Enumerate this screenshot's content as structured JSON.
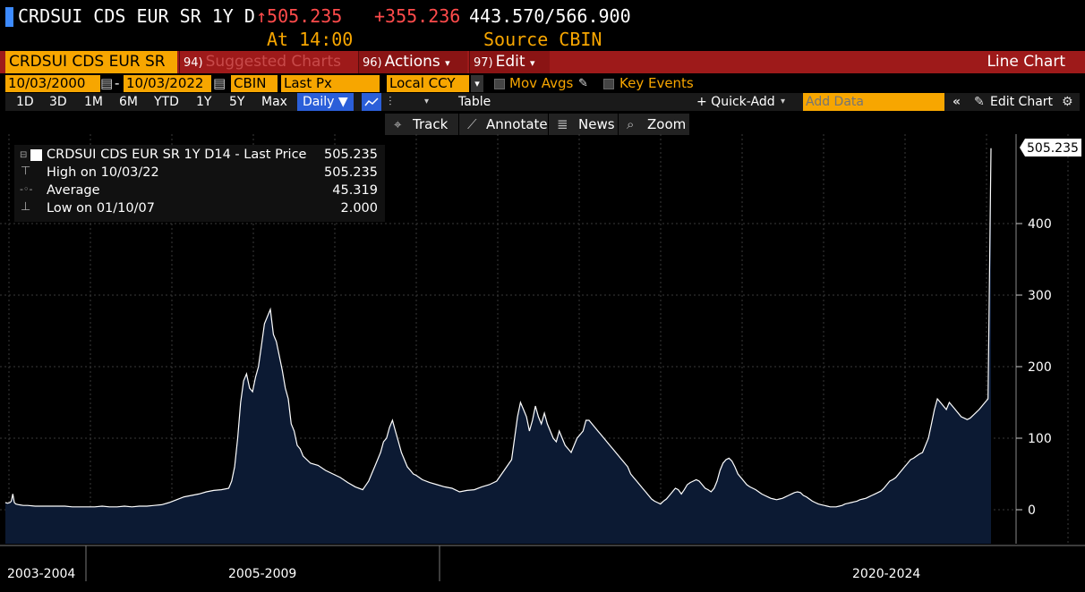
{
  "header": {
    "title": "CRDSUI CDS EUR SR 1Y D",
    "price": "↑505.235",
    "change": "+355.236",
    "range": "443.570/566.900",
    "time": "At 14:00",
    "source": "Source CBIN"
  },
  "toolbar": {
    "ticker": "CRDSUI CDS EUR SR",
    "suggested_num": "94)",
    "suggested": "Suggested Charts",
    "actions_num": "96)",
    "actions": "Actions",
    "edit_num": "97)",
    "edit": "Edit",
    "chart_kind": "Line Chart",
    "date_from": "10/03/2000",
    "date_to": "10/03/2022",
    "source_field": "CBIN",
    "field": "Last Px",
    "ccy": "Local CCY",
    "mov_avgs": "Mov Avgs",
    "key_events": "Key Events",
    "ranges": [
      "1D",
      "3D",
      "1M",
      "6M",
      "YTD",
      "1Y",
      "5Y",
      "Max"
    ],
    "daily": "Daily",
    "table": "Table",
    "quick_add": "+ Quick-Add",
    "add_data_placeholder": "Add Data",
    "edit_chart": "Edit Chart",
    "track": "Track",
    "annotate": "Annotate",
    "news": "News",
    "zoom": "Zoom"
  },
  "legend": {
    "name": "CRDSUI CDS EUR SR 1Y D14 - Last Price",
    "last": "505.235",
    "high_label": "High on 10/03/22",
    "high": "505.235",
    "avg_label": "Average",
    "avg": "45.319",
    "low_label": "Low on 01/10/07",
    "low": "2.000"
  },
  "chart_data": {
    "type": "area",
    "series": [
      {
        "name": "CRDSUI CDS EUR SR 1Y D14 - Last Price",
        "points": [
          [
            0,
            10
          ],
          [
            1.5,
            9
          ],
          [
            3,
            10
          ],
          [
            4,
            12
          ],
          [
            5,
            22
          ],
          [
            6,
            10
          ],
          [
            7,
            8
          ],
          [
            9,
            7
          ],
          [
            12,
            6
          ],
          [
            15,
            6
          ],
          [
            20,
            5
          ],
          [
            25,
            5
          ],
          [
            30,
            5
          ],
          [
            35,
            5
          ],
          [
            40,
            5
          ],
          [
            45,
            4
          ],
          [
            50,
            4
          ],
          [
            55,
            4
          ],
          [
            60,
            4
          ],
          [
            65,
            5
          ],
          [
            70,
            4
          ],
          [
            75,
            4
          ],
          [
            80,
            5
          ],
          [
            85,
            4
          ],
          [
            90,
            5
          ],
          [
            95,
            5
          ],
          [
            100,
            6
          ],
          [
            105,
            7
          ],
          [
            110,
            10
          ],
          [
            115,
            14
          ],
          [
            120,
            18
          ],
          [
            125,
            20
          ],
          [
            130,
            22
          ],
          [
            135,
            25
          ],
          [
            140,
            27
          ],
          [
            145,
            28
          ],
          [
            150,
            30
          ],
          [
            152,
            40
          ],
          [
            154,
            60
          ],
          [
            156,
            100
          ],
          [
            158,
            150
          ],
          [
            160,
            180
          ],
          [
            162,
            190
          ],
          [
            164,
            170
          ],
          [
            166,
            165
          ],
          [
            168,
            185
          ],
          [
            170,
            200
          ],
          [
            172,
            230
          ],
          [
            174,
            260
          ],
          [
            176,
            270
          ],
          [
            178,
            280
          ],
          [
            180,
            245
          ],
          [
            182,
            235
          ],
          [
            184,
            215
          ],
          [
            186,
            195
          ],
          [
            188,
            170
          ],
          [
            190,
            155
          ],
          [
            192,
            120
          ],
          [
            194,
            110
          ],
          [
            196,
            90
          ],
          [
            198,
            85
          ],
          [
            200,
            75
          ],
          [
            205,
            65
          ],
          [
            210,
            62
          ],
          [
            215,
            55
          ],
          [
            220,
            50
          ],
          [
            225,
            45
          ],
          [
            230,
            38
          ],
          [
            235,
            32
          ],
          [
            240,
            28
          ],
          [
            242,
            34
          ],
          [
            244,
            40
          ],
          [
            246,
            50
          ],
          [
            248,
            60
          ],
          [
            250,
            70
          ],
          [
            252,
            80
          ],
          [
            254,
            95
          ],
          [
            256,
            100
          ],
          [
            258,
            115
          ],
          [
            260,
            125
          ],
          [
            262,
            110
          ],
          [
            264,
            95
          ],
          [
            266,
            80
          ],
          [
            268,
            70
          ],
          [
            270,
            60
          ],
          [
            272,
            55
          ],
          [
            274,
            50
          ],
          [
            276,
            48
          ],
          [
            278,
            45
          ],
          [
            280,
            42
          ],
          [
            285,
            38
          ],
          [
            290,
            35
          ],
          [
            295,
            32
          ],
          [
            300,
            30
          ],
          [
            305,
            25
          ],
          [
            310,
            27
          ],
          [
            315,
            28
          ],
          [
            320,
            32
          ],
          [
            325,
            35
          ],
          [
            330,
            40
          ],
          [
            335,
            55
          ],
          [
            340,
            70
          ],
          [
            342,
            100
          ],
          [
            344,
            130
          ],
          [
            346,
            150
          ],
          [
            348,
            140
          ],
          [
            350,
            130
          ],
          [
            352,
            110
          ],
          [
            354,
            125
          ],
          [
            356,
            145
          ],
          [
            358,
            130
          ],
          [
            360,
            120
          ],
          [
            362,
            135
          ],
          [
            364,
            120
          ],
          [
            366,
            110
          ],
          [
            368,
            100
          ],
          [
            370,
            95
          ],
          [
            372,
            110
          ],
          [
            374,
            100
          ],
          [
            376,
            90
          ],
          [
            378,
            85
          ],
          [
            380,
            80
          ],
          [
            382,
            90
          ],
          [
            384,
            100
          ],
          [
            386,
            105
          ],
          [
            388,
            110
          ],
          [
            390,
            125
          ],
          [
            392,
            125
          ],
          [
            394,
            120
          ],
          [
            396,
            115
          ],
          [
            398,
            110
          ],
          [
            400,
            105
          ],
          [
            402,
            100
          ],
          [
            404,
            95
          ],
          [
            406,
            90
          ],
          [
            408,
            85
          ],
          [
            410,
            80
          ],
          [
            412,
            75
          ],
          [
            414,
            70
          ],
          [
            416,
            65
          ],
          [
            418,
            60
          ],
          [
            420,
            50
          ],
          [
            422,
            45
          ],
          [
            424,
            40
          ],
          [
            426,
            35
          ],
          [
            428,
            30
          ],
          [
            430,
            25
          ],
          [
            432,
            20
          ],
          [
            434,
            15
          ],
          [
            436,
            12
          ],
          [
            438,
            10
          ],
          [
            440,
            8
          ],
          [
            442,
            12
          ],
          [
            444,
            15
          ],
          [
            446,
            20
          ],
          [
            448,
            25
          ],
          [
            450,
            30
          ],
          [
            452,
            28
          ],
          [
            454,
            22
          ],
          [
            456,
            28
          ],
          [
            458,
            35
          ],
          [
            460,
            38
          ],
          [
            462,
            40
          ],
          [
            464,
            42
          ],
          [
            466,
            40
          ],
          [
            468,
            35
          ],
          [
            470,
            30
          ],
          [
            472,
            28
          ],
          [
            474,
            25
          ],
          [
            476,
            30
          ],
          [
            478,
            40
          ],
          [
            480,
            55
          ],
          [
            482,
            65
          ],
          [
            484,
            70
          ],
          [
            486,
            72
          ],
          [
            488,
            68
          ],
          [
            490,
            60
          ],
          [
            492,
            50
          ],
          [
            494,
            45
          ],
          [
            496,
            40
          ],
          [
            498,
            35
          ],
          [
            500,
            32
          ],
          [
            502,
            30
          ],
          [
            504,
            28
          ],
          [
            506,
            25
          ],
          [
            508,
            22
          ],
          [
            510,
            20
          ],
          [
            512,
            18
          ],
          [
            514,
            16
          ],
          [
            516,
            15
          ],
          [
            518,
            14
          ],
          [
            520,
            15
          ],
          [
            522,
            16
          ],
          [
            524,
            18
          ],
          [
            526,
            20
          ],
          [
            528,
            22
          ],
          [
            530,
            24
          ],
          [
            532,
            25
          ],
          [
            534,
            24
          ],
          [
            536,
            20
          ],
          [
            538,
            18
          ],
          [
            540,
            15
          ],
          [
            542,
            12
          ],
          [
            544,
            10
          ],
          [
            546,
            8
          ],
          [
            548,
            7
          ],
          [
            550,
            6
          ],
          [
            552,
            5
          ],
          [
            554,
            4
          ],
          [
            556,
            4
          ],
          [
            558,
            4
          ],
          [
            560,
            5
          ],
          [
            562,
            6
          ],
          [
            564,
            8
          ],
          [
            566,
            9
          ],
          [
            568,
            10
          ],
          [
            570,
            11
          ],
          [
            572,
            12
          ],
          [
            574,
            14
          ],
          [
            576,
            15
          ],
          [
            578,
            16
          ],
          [
            580,
            18
          ],
          [
            582,
            20
          ],
          [
            584,
            22
          ],
          [
            586,
            24
          ],
          [
            588,
            26
          ],
          [
            590,
            30
          ],
          [
            592,
            35
          ],
          [
            594,
            40
          ],
          [
            596,
            42
          ],
          [
            598,
            45
          ],
          [
            600,
            50
          ],
          [
            602,
            55
          ],
          [
            604,
            60
          ],
          [
            606,
            65
          ],
          [
            608,
            70
          ],
          [
            610,
            72
          ],
          [
            612,
            75
          ],
          [
            614,
            78
          ],
          [
            616,
            80
          ],
          [
            618,
            90
          ],
          [
            620,
            100
          ],
          [
            622,
            120
          ],
          [
            624,
            140
          ],
          [
            626,
            155
          ],
          [
            628,
            150
          ],
          [
            630,
            145
          ],
          [
            632,
            140
          ],
          [
            634,
            150
          ],
          [
            636,
            145
          ],
          [
            638,
            140
          ],
          [
            640,
            135
          ],
          [
            642,
            130
          ],
          [
            644,
            128
          ],
          [
            646,
            126
          ],
          [
            648,
            128
          ],
          [
            650,
            132
          ],
          [
            652,
            136
          ],
          [
            654,
            140
          ],
          [
            656,
            145
          ],
          [
            658,
            150
          ],
          [
            660,
            155
          ],
          [
            662,
            505.235
          ]
        ]
      }
    ],
    "ylim": [
      -45,
      505.235
    ],
    "yticks": [
      0,
      100,
      200,
      300,
      400
    ],
    "last_label": "505.235",
    "xlabels": [
      "2003-2004",
      "2005-2009",
      "2020-2024"
    ],
    "grid": true,
    "colors": {
      "line": "#ffffff",
      "fill": "#0c1a33",
      "grid": "#3a3a3a",
      "accent": "#f7a600",
      "toolbar": "#9e1a1a",
      "selected": "#2b5fd9"
    }
  }
}
